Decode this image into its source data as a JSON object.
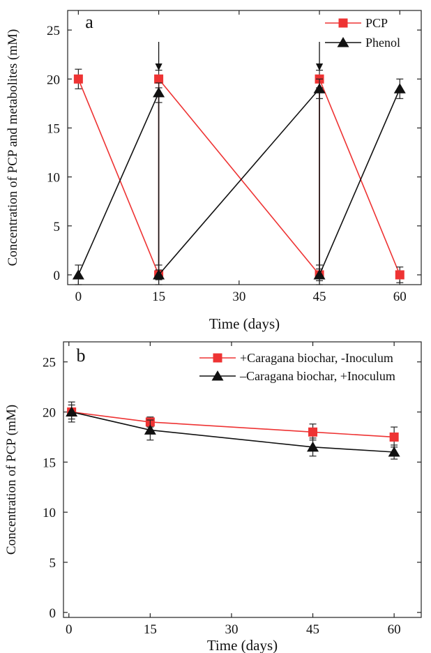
{
  "chart_data": [
    {
      "type": "line",
      "panel_label": "a",
      "xlabel": "Time (days)",
      "ylabel": "Concentration of PCP and metabolites (mM)",
      "xlim": [
        -2,
        64
      ],
      "ylim": [
        -1,
        27
      ],
      "xticks": [
        0,
        15,
        30,
        45,
        60
      ],
      "yticks": [
        0,
        5,
        10,
        15,
        20,
        25
      ],
      "legend_position": "top-right",
      "spiking_arrows_at": [
        15,
        45
      ],
      "series": [
        {
          "name": "PCP",
          "marker": "square",
          "color": "#ee3333",
          "points": [
            [
              0,
              20
            ],
            [
              15,
              0
            ],
            [
              15,
              20
            ],
            [
              45,
              0
            ],
            [
              45,
              20
            ],
            [
              60,
              0
            ]
          ],
          "errors": [
            1.0,
            0.5,
            0.9,
            0.6,
            0.9,
            0.8
          ]
        },
        {
          "name": "Phenol",
          "marker": "triangle",
          "color": "#111111",
          "points": [
            [
              0,
              0
            ],
            [
              15,
              18.6
            ],
            [
              15,
              0
            ],
            [
              45,
              19
            ],
            [
              45,
              0
            ],
            [
              60,
              19
            ]
          ],
          "errors": [
            1.0,
            1.0,
            1.0,
            1.0,
            1.0,
            1.0
          ]
        }
      ]
    },
    {
      "type": "line",
      "panel_label": "b",
      "xlabel": "Time (days)",
      "ylabel": "Concentration of PCP (mM)",
      "xlim": [
        -1,
        65
      ],
      "ylim": [
        -0.5,
        27
      ],
      "xticks": [
        0,
        15,
        30,
        45,
        60
      ],
      "yticks": [
        0,
        5,
        10,
        15,
        20,
        25
      ],
      "legend_position": "top-right",
      "series": [
        {
          "name": "+Caragana biochar, -Inoculum",
          "marker": "square",
          "color": "#ee3333",
          "points": [
            [
              0.5,
              20
            ],
            [
              15,
              19
            ],
            [
              45,
              18
            ],
            [
              60,
              17.5
            ]
          ],
          "errors": [
            0.7,
            0.5,
            0.8,
            1.0
          ]
        },
        {
          "name": "–Caragana biochar, +Inoculum",
          "marker": "triangle",
          "color": "#111111",
          "points": [
            [
              0.5,
              20
            ],
            [
              15,
              18.2
            ],
            [
              45,
              16.5
            ],
            [
              60,
              16
            ]
          ],
          "errors": [
            1.0,
            1.0,
            0.9,
            0.7
          ]
        }
      ]
    }
  ]
}
